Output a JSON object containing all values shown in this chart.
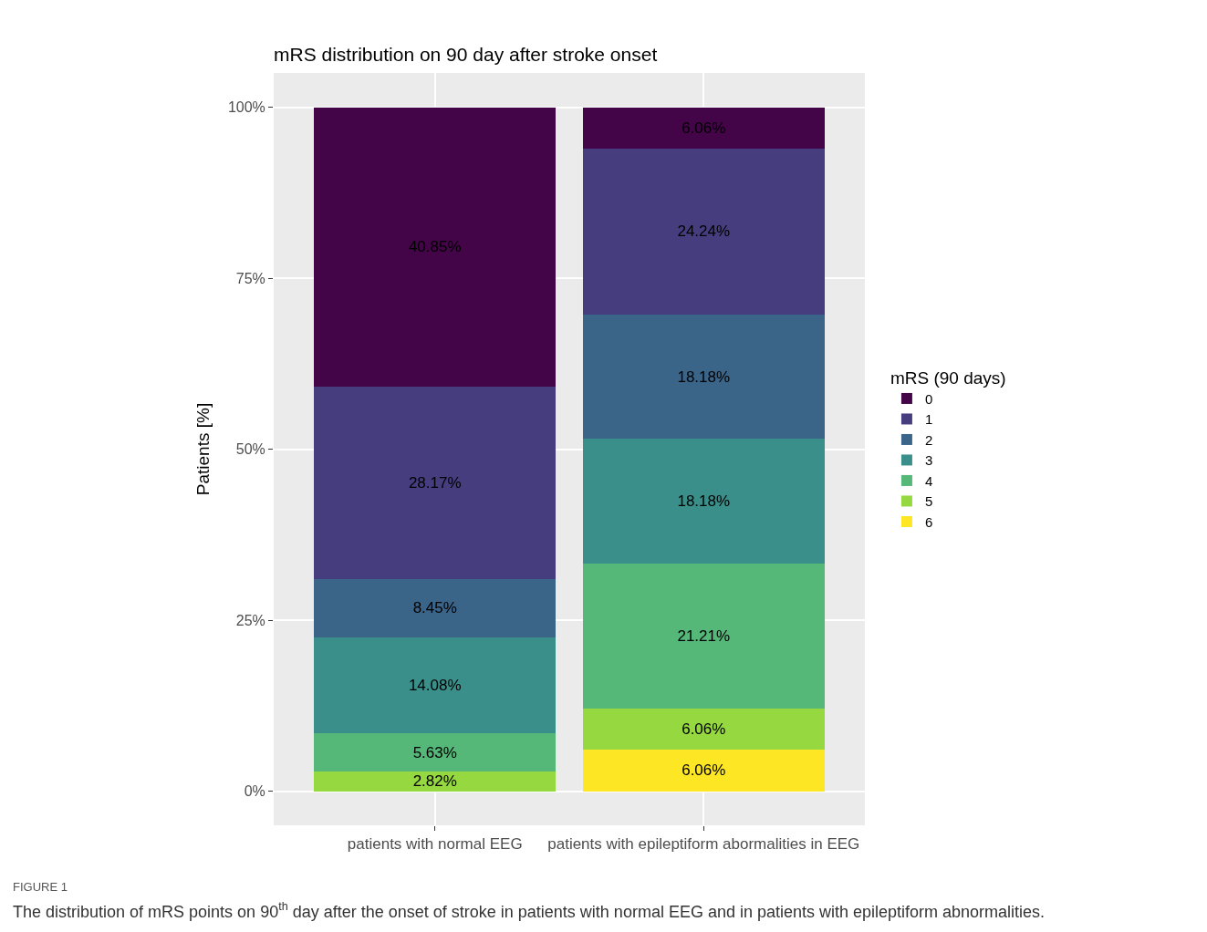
{
  "chart_data": {
    "type": "bar",
    "stacked": true,
    "title": "mRS distribution on 90 day after stroke onset",
    "ylabel": "Patients [%]",
    "legend_title": "mRS (90 days)",
    "legend": "right",
    "grid": true,
    "categories": [
      "patients with normal EEG",
      "patients with epileptiform abormalities in EEG"
    ],
    "ylim": [
      -5,
      105
    ],
    "yticks": [
      {
        "value": 0,
        "label": "0%"
      },
      {
        "value": 25,
        "label": "25%"
      },
      {
        "value": 50,
        "label": "50%"
      },
      {
        "value": 75,
        "label": "75%"
      },
      {
        "value": 100,
        "label": "100%"
      }
    ],
    "series": [
      {
        "name": "6",
        "color": "#fde725",
        "values": [
          null,
          6.06
        ],
        "value_labels": [
          null,
          "6.06%"
        ]
      },
      {
        "name": "5",
        "color": "#95d840",
        "values": [
          2.82,
          6.06
        ],
        "value_labels": [
          "2.82%",
          "6.06%"
        ]
      },
      {
        "name": "4",
        "color": "#55b878",
        "values": [
          5.63,
          21.21
        ],
        "value_labels": [
          "5.63%",
          "21.21%"
        ]
      },
      {
        "name": "3",
        "color": "#3a8f8a",
        "values": [
          14.08,
          18.18
        ],
        "value_labels": [
          "14.08%",
          "18.18%"
        ]
      },
      {
        "name": "2",
        "color": "#3b6489",
        "values": [
          8.45,
          18.18
        ],
        "value_labels": [
          "8.45%",
          "18.18%"
        ]
      },
      {
        "name": "1",
        "color": "#463d7f",
        "values": [
          28.17,
          24.24
        ],
        "value_labels": [
          "28.17%",
          "24.24%"
        ]
      },
      {
        "name": "0",
        "color": "#430448",
        "values": [
          40.85,
          6.06
        ],
        "value_labels": [
          "40.85%",
          "6.06%"
        ]
      }
    ],
    "annotations": [
      "FIGURE 1",
      "The distribution of mRS points on 90$^{th}$ day after the onset of stroke in patients with normal EEG and in patients with epileptiform abnormalities."
    ]
  }
}
